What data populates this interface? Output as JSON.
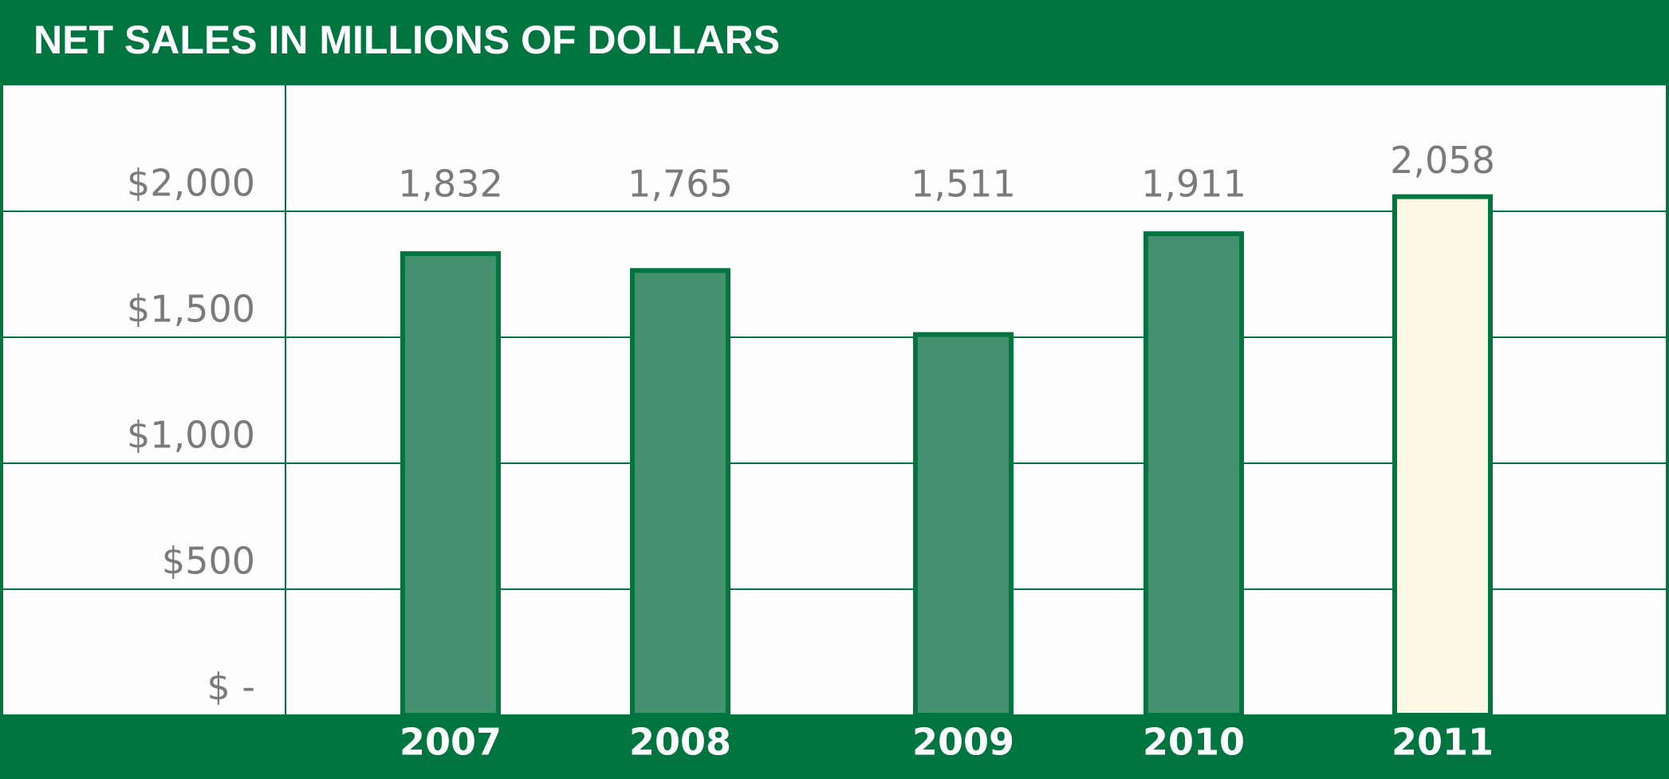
{
  "chart_data": {
    "type": "bar",
    "title": "NET SALES IN MILLIONS OF DOLLARS",
    "categories": [
      "2007",
      "2008",
      "2009",
      "2010",
      "2011"
    ],
    "values": [
      1832,
      1765,
      1511,
      1911,
      2058
    ],
    "value_labels": [
      "1,832",
      "1,765",
      "1,511",
      "1,911",
      "2,058"
    ],
    "colors": [
      "#45916f",
      "#45916f",
      "#45916f",
      "#45916f",
      "#fdf8e4"
    ],
    "ylim": [
      0,
      2500
    ],
    "yticks": [
      {
        "value": 0,
        "label": "$ -"
      },
      {
        "value": 500,
        "label": "$500"
      },
      {
        "value": 1000,
        "label": "$1,000"
      },
      {
        "value": 1500,
        "label": "$1,500"
      },
      {
        "value": 2000,
        "label": "$2,000"
      }
    ],
    "grid": true
  }
}
